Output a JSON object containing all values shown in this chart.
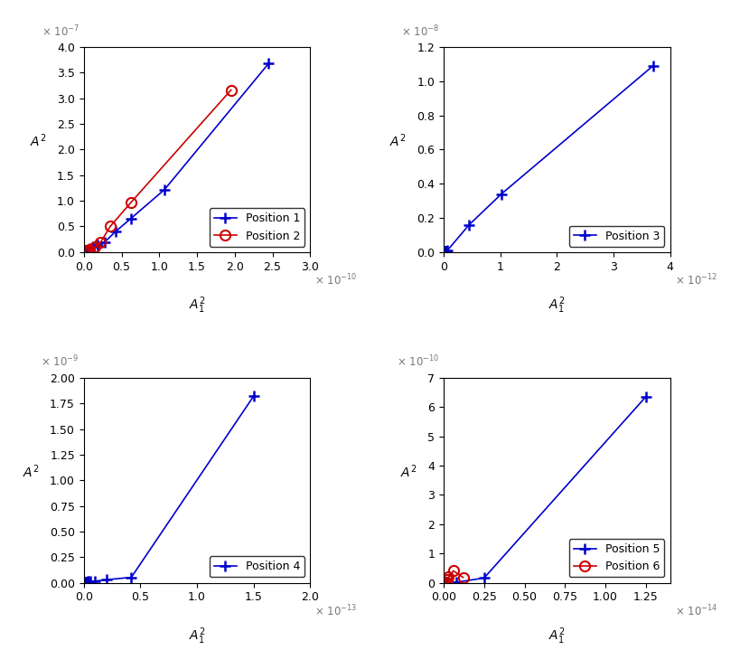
{
  "s1": {
    "p1x": [
      5e-13,
      1e-12,
      2e-12,
      3e-12,
      5e-12,
      8e-12,
      1.2e-11,
      1.8e-11,
      2.8e-11,
      4.2e-11,
      6.2e-11,
      1.07e-10,
      2.45e-10
    ],
    "p1y": [
      4e-10,
      8e-10,
      1.5e-09,
      2.5e-09,
      4e-09,
      6.5e-09,
      1e-08,
      1.3e-08,
      2e-08,
      4e-08,
      6.5e-08,
      1.22e-07,
      3.68e-07
    ],
    "p2x": [
      5e-13,
      1e-12,
      2e-12,
      3e-12,
      5e-12,
      8e-12,
      1.5e-11,
      2.2e-11,
      3.5e-11,
      6.2e-11,
      1.95e-10
    ],
    "p2y": [
      5e-10,
      1.2e-09,
      1.8e-09,
      2.5e-09,
      4e-09,
      5.2e-09,
      9.5e-09,
      1.85e-08,
      5e-08,
      9.6e-08,
      3.16e-07
    ],
    "xlim": [
      0,
      3e-10
    ],
    "ylim": [
      0,
      4e-07
    ],
    "xexp": -10,
    "yexp": -7,
    "legend": [
      "Position 1",
      "Position 2"
    ]
  },
  "s2": {
    "p3x": [
      5e-15,
      1e-14,
      1.5e-14,
      2e-14,
      2.5e-14,
      3e-14,
      4e-14,
      6e-14,
      4.5e-13,
      1.02e-12,
      3.7e-12
    ],
    "p3y": [
      1e-11,
      2e-11,
      3e-11,
      4e-11,
      5e-11,
      5.5e-11,
      6.5e-11,
      7.5e-11,
      1.6e-09,
      3.4e-09,
      1.09e-08
    ],
    "xlim": [
      0,
      4e-12
    ],
    "ylim": [
      0,
      1.2e-08
    ],
    "xexp": -12,
    "yexp": -8,
    "legend": [
      "Position 3"
    ]
  },
  "s3": {
    "p4x": [
      5e-16,
      1e-15,
      1.5e-15,
      2e-15,
      2.5e-15,
      3e-15,
      4e-15,
      6e-15,
      1e-14,
      2e-14,
      4.2e-14,
      1.5e-13
    ],
    "p4y": [
      2e-12,
      4e-12,
      6e-12,
      8e-12,
      1e-11,
      1.2e-11,
      1.4e-11,
      1.55e-11,
      1.65e-11,
      3e-11,
      5.4e-11,
      1.82e-09
    ],
    "xlim": [
      0,
      2e-13
    ],
    "ylim": [
      0,
      2e-09
    ],
    "xexp": -13,
    "yexp": -9,
    "legend": [
      "Position 4"
    ]
  },
  "s4": {
    "p5x": [
      5e-17,
      1e-16,
      1.5e-16,
      2e-16,
      3e-16,
      5e-16,
      8e-16,
      2.5e-15,
      1.25e-14
    ],
    "p5y": [
      5e-13,
      8e-13,
      1e-12,
      1.2e-12,
      1.5e-12,
      1.8e-12,
      2.2e-12,
      1.65e-11,
      6.35e-10
    ],
    "p6x": [
      5e-17,
      1e-16,
      1.5e-16,
      2e-16,
      3e-16,
      6e-16,
      1.2e-15
    ],
    "p6y": [
      5e-13,
      1e-12,
      2e-12,
      1e-11,
      1.95e-11,
      4.1e-11,
      1.85e-11
    ],
    "xlim": [
      0,
      1.4e-14
    ],
    "ylim": [
      0,
      7e-10
    ],
    "xexp": -14,
    "yexp": -10,
    "legend": [
      "Position 5",
      "Position 6"
    ]
  },
  "blue": "#0000CC",
  "red": "#CC0000"
}
